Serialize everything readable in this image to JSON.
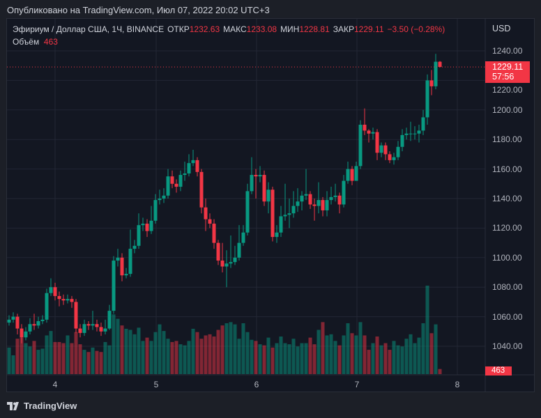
{
  "header": {
    "published": "Опубликовано на TradingView.com, Июл 07, 2022 20:02 UTC+3"
  },
  "legend": {
    "symbol": "Эфириум / Доллар США, 1Ч, BINANCE",
    "open_label": "ОТКР",
    "open": "1232.63",
    "high_label": "МАКС",
    "high": "1233.08",
    "low_label": "МИН",
    "low": "1228.81",
    "close_label": "ЗАКР",
    "close": "1229.11",
    "change": "−3.50 (−0.28%)",
    "volume_label": "Объём",
    "volume": "463"
  },
  "axis": {
    "currency": "USD",
    "last_price": "1229.11",
    "countdown": "57:56",
    "last_volume": "463"
  },
  "footer": {
    "logo": "TradingView"
  },
  "colors": {
    "up": "#089981",
    "down": "#f23645",
    "background": "#131722",
    "grid": "#232734"
  },
  "chart_data": {
    "type": "candlestick",
    "interval": "1h",
    "y_ticks": [
      1040,
      1060,
      1080,
      1100,
      1120,
      1140,
      1160,
      1180,
      1200,
      1220,
      1240
    ],
    "y_tick_labels": [
      "1040.00",
      "1060.00",
      "1080.00",
      "1100.00",
      "1120.00",
      "1140.00",
      "1160.00",
      "1180.00",
      "1200.00",
      "1220.00",
      "1240.00"
    ],
    "x_tick_labels": [
      "4",
      "5",
      "6",
      "7",
      "8"
    ],
    "ylim": [
      1028,
      1250
    ],
    "grid": true,
    "first_candle": "2022-07-03 13:00",
    "first_open": 1056,
    "close": [
      1058,
      1060,
      1052,
      1046,
      1050,
      1055,
      1054,
      1057,
      1058,
      1076,
      1080,
      1074,
      1072,
      1071,
      1072,
      1070,
      1052,
      1049,
      1055,
      1054,
      1055,
      1053,
      1050,
      1052,
      1064,
      1098,
      1100,
      1088,
      1089,
      1106,
      1108,
      1122,
      1123,
      1118,
      1125,
      1139,
      1140,
      1142,
      1155,
      1150,
      1148,
      1156,
      1157,
      1164,
      1166,
      1158,
      1134,
      1126,
      1123,
      1110,
      1098,
      1094,
      1096,
      1097,
      1100,
      1110,
      1117,
      1145,
      1156,
      1155,
      1156,
      1138,
      1146,
      1114,
      1117,
      1128,
      1129,
      1130,
      1135,
      1138,
      1142,
      1143,
      1136,
      1135,
      1139,
      1132,
      1139,
      1141,
      1142,
      1136,
      1152,
      1160,
      1152,
      1162,
      1190,
      1186,
      1184,
      1185,
      1171,
      1176,
      1170,
      1166,
      1168,
      1175,
      1183,
      1184,
      1184,
      1184,
      1186,
      1195,
      1220,
      1216,
      1232.63,
      1229.11
    ],
    "high": [
      1061,
      1063,
      1062,
      1055,
      1053,
      1059,
      1062,
      1060,
      1061,
      1079,
      1086,
      1083,
      1077,
      1075,
      1075,
      1074,
      1072,
      1055,
      1058,
      1057,
      1064,
      1058,
      1056,
      1058,
      1068,
      1101,
      1106,
      1103,
      1093,
      1119,
      1112,
      1130,
      1127,
      1126,
      1135,
      1143,
      1146,
      1147,
      1160,
      1159,
      1153,
      1159,
      1165,
      1170,
      1173,
      1168,
      1160,
      1140,
      1130,
      1126,
      1112,
      1110,
      1105,
      1115,
      1108,
      1122,
      1122,
      1150,
      1168,
      1160,
      1162,
      1159,
      1151,
      1148,
      1122,
      1135,
      1150,
      1140,
      1145,
      1147,
      1145,
      1160,
      1145,
      1140,
      1151,
      1141,
      1145,
      1148,
      1150,
      1144,
      1156,
      1165,
      1162,
      1165,
      1193,
      1201,
      1187,
      1188,
      1187,
      1178,
      1178,
      1172,
      1171,
      1179,
      1187,
      1188,
      1192,
      1189,
      1190,
      1200,
      1224,
      1227,
      1238,
      1233.08
    ],
    "low": [
      1054,
      1056,
      1048,
      1042,
      1044,
      1048,
      1051,
      1052,
      1055,
      1056,
      1074,
      1071,
      1067,
      1068,
      1069,
      1066,
      1049,
      1046,
      1047,
      1051,
      1051,
      1050,
      1047,
      1048,
      1051,
      1062,
      1094,
      1084,
      1086,
      1087,
      1103,
      1106,
      1118,
      1114,
      1116,
      1123,
      1136,
      1137,
      1140,
      1147,
      1144,
      1145,
      1152,
      1155,
      1162,
      1155,
      1130,
      1118,
      1120,
      1106,
      1095,
      1090,
      1080,
      1093,
      1095,
      1098,
      1108,
      1115,
      1143,
      1140,
      1151,
      1135,
      1130,
      1111,
      1110,
      1114,
      1125,
      1120,
      1127,
      1131,
      1132,
      1139,
      1133,
      1125,
      1130,
      1128,
      1128,
      1136,
      1138,
      1130,
      1134,
      1150,
      1149,
      1158,
      1160,
      1183,
      1178,
      1180,
      1166,
      1168,
      1166,
      1164,
      1163,
      1166,
      1172,
      1180,
      1179,
      1180,
      1178,
      1183,
      1190,
      1210,
      1214,
      1228.81
    ],
    "volume": [
      2400,
      1700,
      3200,
      3300,
      2800,
      2500,
      3000,
      2200,
      2300,
      3500,
      3900,
      2900,
      2900,
      2800,
      3500,
      2800,
      3800,
      2700,
      2200,
      2000,
      2400,
      2100,
      2000,
      2900,
      2600,
      5400,
      5000,
      4400,
      4100,
      4000,
      3600,
      4200,
      3000,
      3300,
      3000,
      3800,
      4500,
      3900,
      3200,
      2900,
      3000,
      2700,
      2600,
      3000,
      4100,
      3800,
      3200,
      3500,
      3600,
      3400,
      4000,
      4400,
      4600,
      4700,
      4500,
      3200,
      4600,
      3800,
      3100,
      3000,
      2700,
      2600,
      3300,
      2400,
      2800,
      3400,
      2800,
      2700,
      3200,
      2500,
      2800,
      2800,
      3300,
      2700,
      4000,
      4700,
      3500,
      3600,
      3000,
      2600,
      3500,
      4600,
      3700,
      3500,
      4700,
      3500,
      2200,
      2800,
      3400,
      2600,
      2800,
      2200,
      3000,
      2600,
      2500,
      3200,
      3600,
      2800,
      3300,
      4600,
      8000,
      3700,
      4500,
      463
    ]
  }
}
